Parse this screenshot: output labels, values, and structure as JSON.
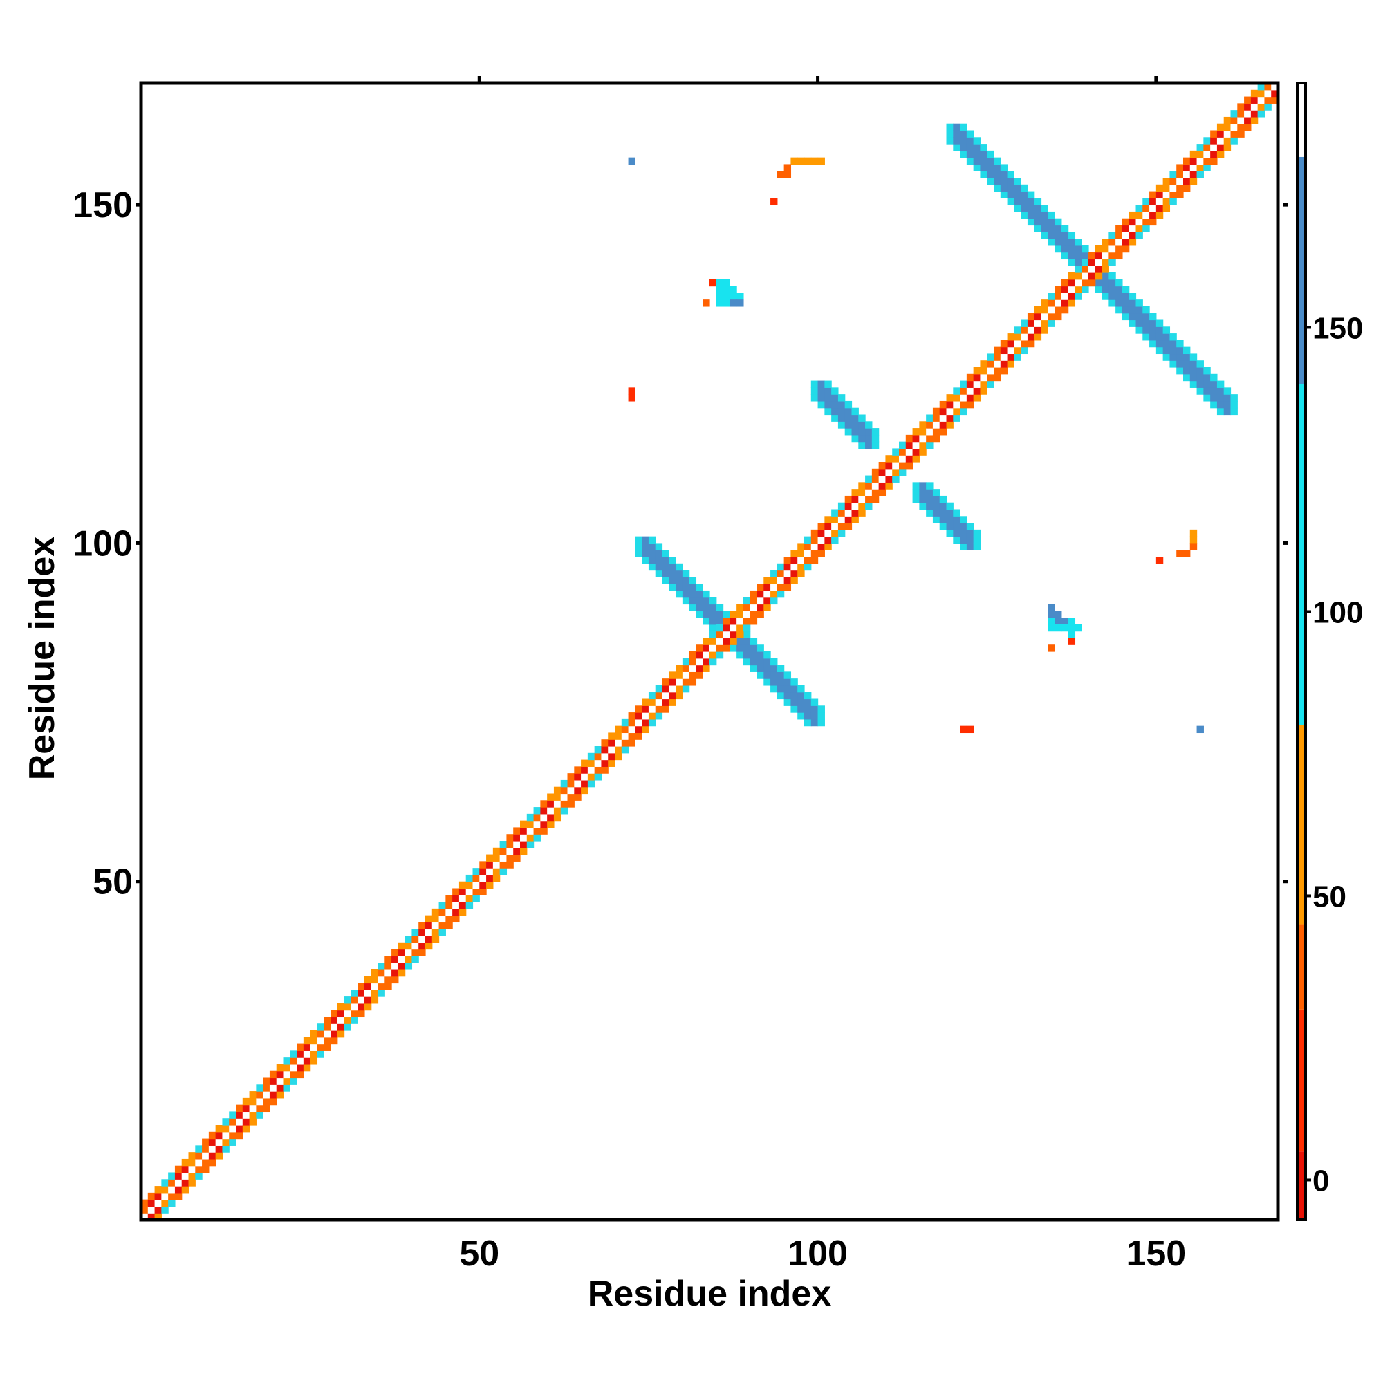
{
  "chart_data": {
    "type": "heatmap",
    "title": "",
    "xlabel": "Residue index",
    "ylabel": "Residue index",
    "xlim": [
      0,
      168
    ],
    "ylim": [
      0,
      168
    ],
    "x_ticks": [
      50,
      100,
      150
    ],
    "y_ticks": [
      50,
      100,
      150
    ],
    "grid": false,
    "diagonal": {
      "from": 0,
      "to": 168,
      "pattern": [
        "#ffffff",
        "#e8140a",
        "#ff6a00",
        "#ff9500",
        "#29d9e8"
      ]
    },
    "regions": [
      {
        "color": "#4a8bc8",
        "edge": "#21dbe8",
        "x": [
          73,
          100
        ],
        "y": [
          73,
          100
        ],
        "orientation": "anti",
        "width": 2.4
      },
      {
        "color": "#4a8bc8",
        "edge": "#21dbe8",
        "x": [
          99,
          108
        ],
        "y": [
          114,
          123
        ],
        "orientation": "anti",
        "width": 2.2
      },
      {
        "color": "#4a8bc8",
        "edge": "#21dbe8",
        "x": [
          114,
          123
        ],
        "y": [
          99,
          108
        ],
        "orientation": "anti",
        "width": 2.2
      },
      {
        "color": "#4a8bc8",
        "edge": "#21dbe8",
        "x": [
          119,
          161
        ],
        "y": [
          119,
          161
        ],
        "orientation": "anti",
        "width": 2.4
      }
    ],
    "points": [
      {
        "x": 72,
        "y": 156,
        "v": 160
      },
      {
        "x": 96,
        "y": 156,
        "v": 55
      },
      {
        "x": 97,
        "y": 156,
        "v": 55
      },
      {
        "x": 98,
        "y": 156,
        "v": 55
      },
      {
        "x": 99,
        "y": 156,
        "v": 55
      },
      {
        "x": 100,
        "y": 156,
        "v": 55
      },
      {
        "x": 95,
        "y": 155,
        "v": 40
      },
      {
        "x": 94,
        "y": 154,
        "v": 40
      },
      {
        "x": 95,
        "y": 154,
        "v": 40
      },
      {
        "x": 93,
        "y": 150,
        "v": 25
      },
      {
        "x": 84,
        "y": 138,
        "v": 20
      },
      {
        "x": 85,
        "y": 138,
        "v": 95
      },
      {
        "x": 86,
        "y": 138,
        "v": 95
      },
      {
        "x": 85,
        "y": 137,
        "v": 95
      },
      {
        "x": 86,
        "y": 137,
        "v": 120
      },
      {
        "x": 87,
        "y": 137,
        "v": 95
      },
      {
        "x": 85,
        "y": 136,
        "v": 95
      },
      {
        "x": 86,
        "y": 136,
        "v": 95
      },
      {
        "x": 87,
        "y": 136,
        "v": 120
      },
      {
        "x": 88,
        "y": 136,
        "v": 130
      },
      {
        "x": 83,
        "y": 135,
        "v": 40
      },
      {
        "x": 85,
        "y": 135,
        "v": 95
      },
      {
        "x": 86,
        "y": 135,
        "v": 95
      },
      {
        "x": 87,
        "y": 135,
        "v": 150
      },
      {
        "x": 88,
        "y": 135,
        "v": 150
      },
      {
        "x": 72,
        "y": 122,
        "v": 20
      },
      {
        "x": 72,
        "y": 121,
        "v": 20
      },
      {
        "x": 155,
        "y": 101,
        "v": 55
      },
      {
        "x": 155,
        "y": 100,
        "v": 55
      },
      {
        "x": 155,
        "y": 99,
        "v": 40
      },
      {
        "x": 154,
        "y": 98,
        "v": 40
      },
      {
        "x": 153,
        "y": 98,
        "v": 40
      },
      {
        "x": 150,
        "y": 97,
        "v": 20
      },
      {
        "x": 134,
        "y": 90,
        "v": 150
      },
      {
        "x": 134,
        "y": 89,
        "v": 150
      },
      {
        "x": 135,
        "y": 89,
        "v": 150
      },
      {
        "x": 134,
        "y": 88,
        "v": 95
      },
      {
        "x": 135,
        "y": 88,
        "v": 150
      },
      {
        "x": 136,
        "y": 88,
        "v": 150
      },
      {
        "x": 137,
        "y": 88,
        "v": 120
      },
      {
        "x": 134,
        "y": 87,
        "v": 95
      },
      {
        "x": 135,
        "y": 87,
        "v": 95
      },
      {
        "x": 136,
        "y": 87,
        "v": 95
      },
      {
        "x": 137,
        "y": 87,
        "v": 95
      },
      {
        "x": 138,
        "y": 87,
        "v": 95
      },
      {
        "x": 137,
        "y": 86,
        "v": 95
      },
      {
        "x": 137,
        "y": 85,
        "v": 20
      },
      {
        "x": 134,
        "y": 84,
        "v": 40
      },
      {
        "x": 121,
        "y": 72,
        "v": 20
      },
      {
        "x": 122,
        "y": 72,
        "v": 20
      },
      {
        "x": 156,
        "y": 72,
        "v": 160
      }
    ],
    "colorbar": {
      "ticks": [
        0,
        50,
        100,
        150
      ],
      "range": [
        -7,
        193
      ],
      "stops": [
        {
          "from": -7,
          "to": 5,
          "color": "#e81205"
        },
        {
          "from": 5,
          "to": 30,
          "color": "#ff2d00"
        },
        {
          "from": 30,
          "to": 45,
          "color": "#ff6000"
        },
        {
          "from": 45,
          "to": 80,
          "color": "#ff9a00"
        },
        {
          "from": 80,
          "to": 140,
          "color": "#18e3ef"
        },
        {
          "from": 140,
          "to": 180,
          "color": "#4a8bc8"
        },
        {
          "from": 180,
          "to": 193,
          "color": "#ffffff"
        }
      ]
    }
  }
}
